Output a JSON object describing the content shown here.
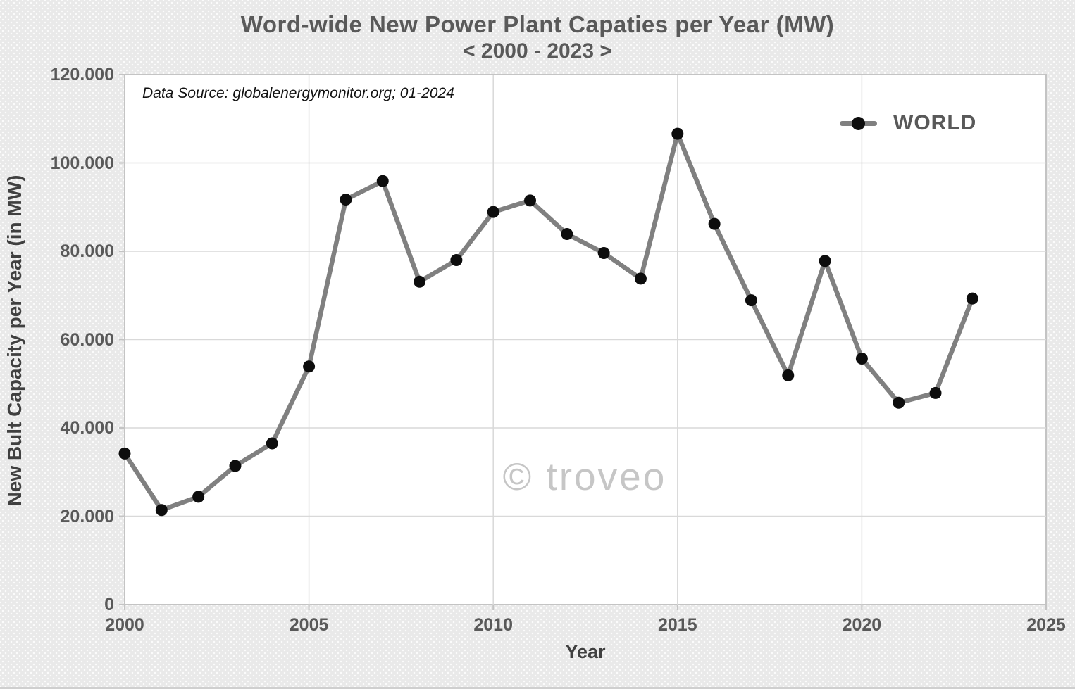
{
  "figure": {
    "title": "Word-wide New Power Plant Capaties per Year (MW)",
    "subtitle": "< 2000 - 2023 >",
    "data_source": "Data Source: globalenergymonitor.org; 01-2024",
    "watermark": "© troveo",
    "legend_label": "WORLD"
  },
  "chart_data": {
    "type": "line",
    "title": "Word-wide New Power Plant Capaties per Year (MW) < 2000 - 2023 >",
    "xlabel": "Year",
    "ylabel": "New Bult Capacity per Year (in MW)",
    "xlim": [
      2000,
      2025
    ],
    "ylim": [
      0,
      120000
    ],
    "grid": true,
    "legend_position": "upper right",
    "x": [
      2000,
      2001,
      2002,
      2003,
      2004,
      2005,
      2006,
      2007,
      2008,
      2009,
      2010,
      2011,
      2012,
      2013,
      2014,
      2015,
      2016,
      2017,
      2018,
      2019,
      2020,
      2021,
      2022,
      2023
    ],
    "series": [
      {
        "name": "WORLD",
        "values": [
          34200,
          21400,
          24400,
          31400,
          36500,
          53900,
          91700,
          95900,
          73100,
          78000,
          88900,
          91500,
          83900,
          79600,
          73800,
          106600,
          86200,
          68900,
          51900,
          77800,
          55700,
          45700,
          47900,
          69300
        ]
      }
    ],
    "x_ticks": [
      {
        "label": "2000",
        "value": 2000
      },
      {
        "label": "2005",
        "value": 2005
      },
      {
        "label": "2010",
        "value": 2010
      },
      {
        "label": "2015",
        "value": 2015
      },
      {
        "label": "2020",
        "value": 2020
      },
      {
        "label": "2025",
        "value": 2025
      }
    ],
    "y_ticks": [
      {
        "label": "120.000",
        "value": 120000
      },
      {
        "label": "100.000",
        "value": 100000
      },
      {
        "label": "80.000",
        "value": 80000
      },
      {
        "label": "60.000",
        "value": 60000
      },
      {
        "label": "40.000",
        "value": 40000
      },
      {
        "label": "20.000",
        "value": 20000
      },
      {
        "label": "0",
        "value": 0
      }
    ],
    "colors": {
      "line": "#808080",
      "marker": "#0d0d0d",
      "gridline": "#d9d9d9",
      "plot_border": "#c4c4c4",
      "plot_background": "#ffffff",
      "figure_background": "#e9e9e9",
      "text": "#595959"
    }
  }
}
